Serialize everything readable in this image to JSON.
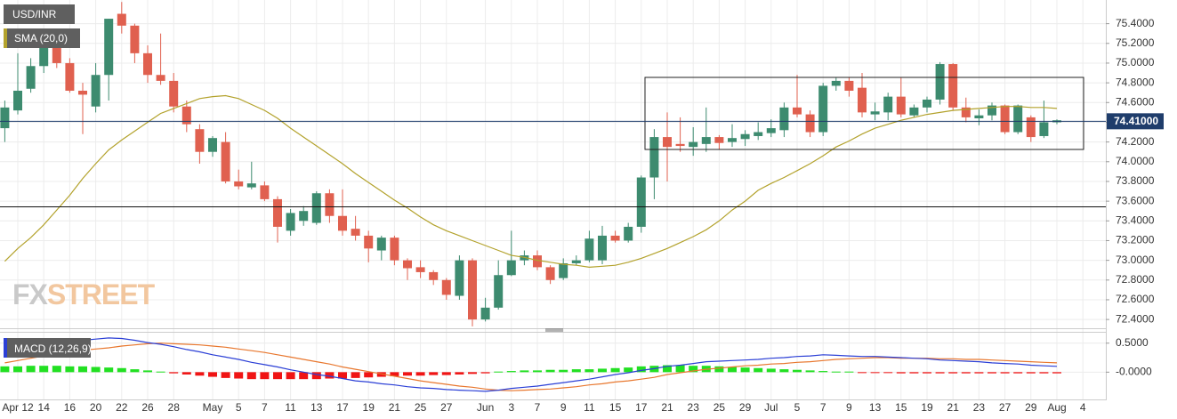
{
  "chart_data": [
    {
      "type": "candlestick",
      "series": [
        {
          "name": "USD/INR",
          "up_color": "#3d8b6f",
          "down_color": "#e0604f"
        }
      ],
      "categories": [
        null,
        "Apr 12",
        null,
        "14",
        null,
        "16",
        null,
        "20",
        null,
        "22",
        null,
        "26",
        null,
        "28",
        null,
        null,
        "May",
        null,
        "5",
        null,
        "7",
        null,
        "11",
        null,
        "13",
        null,
        "17",
        null,
        "19",
        null,
        "21",
        null,
        "25",
        null,
        "27",
        null,
        null,
        "Jun",
        null,
        "3",
        null,
        "7",
        null,
        "9",
        null,
        "11",
        null,
        "15",
        null,
        "17",
        null,
        "21",
        null,
        "23",
        null,
        "25",
        null,
        "29",
        null,
        "Jul",
        null,
        "5",
        null,
        "7",
        null,
        "9",
        null,
        "13",
        null,
        "15",
        null,
        "19",
        null,
        "21",
        null,
        "23",
        null,
        "27",
        null,
        "29",
        null,
        "Aug",
        null,
        "4"
      ],
      "open": [
        74.34,
        74.52,
        74.74,
        74.97,
        75.25,
        75.0,
        74.72,
        74.56,
        74.88,
        75.5,
        75.38,
        75.1,
        74.88,
        74.82,
        74.56,
        74.33,
        74.1,
        74.2,
        73.8,
        73.74,
        73.76,
        73.62,
        73.3,
        73.4,
        73.38,
        73.68,
        73.45,
        73.32,
        73.25,
        73.1,
        73.23,
        73.0,
        72.93,
        72.88,
        72.8,
        72.64,
        73.0,
        72.4,
        72.52,
        72.85,
        73.0,
        73.05,
        72.93,
        72.82,
        72.97,
        73.0,
        73.0,
        73.25,
        73.2,
        73.34,
        73.84,
        74.25,
        74.18,
        74.15,
        74.18,
        74.25,
        74.2,
        74.23,
        74.26,
        74.29,
        74.32,
        74.55,
        74.48,
        74.3,
        74.77,
        74.82,
        74.75,
        74.48,
        74.5,
        74.66,
        74.47,
        74.55,
        74.63,
        74.99,
        74.55,
        74.44,
        74.47,
        74.57,
        74.3,
        74.45,
        74.26,
        74.4,
        null,
        null
      ],
      "high": [
        74.62,
        75.1,
        75.05,
        75.35,
        75.32,
        75.05,
        74.8,
        75.0,
        75.45,
        75.62,
        75.4,
        75.18,
        75.3,
        74.9,
        74.62,
        74.38,
        74.26,
        74.3,
        73.92,
        74.0,
        73.8,
        73.65,
        73.52,
        73.55,
        73.7,
        73.72,
        73.72,
        73.45,
        73.3,
        73.25,
        73.25,
        73.02,
        73.0,
        72.9,
        72.82,
        73.05,
        73.02,
        72.62,
        73.0,
        73.3,
        73.1,
        73.1,
        72.95,
        73.02,
        73.05,
        73.3,
        73.35,
        73.3,
        73.38,
        73.86,
        74.33,
        74.5,
        74.45,
        74.35,
        74.55,
        74.27,
        74.38,
        74.32,
        74.4,
        74.43,
        74.6,
        74.88,
        74.52,
        74.8,
        74.85,
        74.86,
        74.9,
        74.6,
        74.7,
        74.85,
        74.58,
        74.66,
        75.01,
        75.0,
        74.65,
        74.53,
        74.6,
        74.58,
        74.58,
        74.47,
        74.62,
        74.43,
        null,
        null
      ],
      "low": [
        74.2,
        74.48,
        74.7,
        74.9,
        74.95,
        74.7,
        74.28,
        74.5,
        74.62,
        75.3,
        75.0,
        74.8,
        74.78,
        74.5,
        74.3,
        73.98,
        74.05,
        73.78,
        73.72,
        73.72,
        73.6,
        73.18,
        73.25,
        73.35,
        73.36,
        73.38,
        73.25,
        73.2,
        72.98,
        73.0,
        72.95,
        72.8,
        72.82,
        72.75,
        72.6,
        72.6,
        72.33,
        72.38,
        72.5,
        72.84,
        72.95,
        72.9,
        72.76,
        72.8,
        72.95,
        72.98,
        72.96,
        73.18,
        73.18,
        73.28,
        73.62,
        73.8,
        74.1,
        74.06,
        74.1,
        74.12,
        74.15,
        74.16,
        74.22,
        74.25,
        74.25,
        74.45,
        74.25,
        74.26,
        74.72,
        74.66,
        74.45,
        74.42,
        74.42,
        74.45,
        74.45,
        74.5,
        74.58,
        74.52,
        74.4,
        74.37,
        74.42,
        74.28,
        74.28,
        74.2,
        74.24,
        74.38,
        null,
        null
      ],
      "close": [
        74.55,
        74.72,
        74.97,
        75.24,
        75.0,
        74.72,
        74.68,
        74.88,
        75.45,
        75.38,
        75.1,
        74.88,
        74.82,
        74.56,
        74.38,
        74.1,
        74.24,
        73.8,
        73.75,
        73.78,
        73.62,
        73.34,
        73.48,
        73.5,
        73.68,
        73.45,
        73.3,
        73.25,
        73.12,
        73.23,
        73.0,
        72.92,
        72.88,
        72.8,
        72.65,
        73.0,
        72.4,
        72.52,
        72.85,
        73.0,
        73.05,
        72.93,
        72.8,
        72.97,
        73.0,
        73.22,
        73.25,
        73.2,
        73.34,
        73.84,
        74.25,
        74.15,
        74.16,
        74.2,
        74.25,
        74.19,
        74.24,
        74.28,
        74.3,
        74.34,
        74.55,
        74.48,
        74.3,
        74.77,
        74.82,
        74.72,
        74.5,
        74.51,
        74.66,
        74.48,
        74.55,
        74.63,
        74.99,
        74.55,
        74.45,
        74.47,
        74.57,
        74.3,
        74.57,
        74.25,
        74.4,
        74.42,
        null,
        null
      ],
      "sma": {
        "name": "SMA (20,0)",
        "color": "#b3a22c",
        "values": [
          72.99,
          73.12,
          73.23,
          73.36,
          73.51,
          73.66,
          73.83,
          73.98,
          74.12,
          74.22,
          74.31,
          74.4,
          74.49,
          74.54,
          74.59,
          74.64,
          74.66,
          74.67,
          74.64,
          74.58,
          74.52,
          74.44,
          74.34,
          74.25,
          74.16,
          74.07,
          73.98,
          73.88,
          73.79,
          73.7,
          73.61,
          73.53,
          73.44,
          73.36,
          73.3,
          73.25,
          73.2,
          73.15,
          73.1,
          73.05,
          73.03,
          73.0,
          72.98,
          72.96,
          72.95,
          72.93,
          72.94,
          72.95,
          72.98,
          73.02,
          73.07,
          73.12,
          73.18,
          73.24,
          73.31,
          73.4,
          73.51,
          73.6,
          73.71,
          73.78,
          73.84,
          73.91,
          73.98,
          74.06,
          74.15,
          74.21,
          74.28,
          74.34,
          74.38,
          74.42,
          74.45,
          74.48,
          74.5,
          74.52,
          74.53,
          74.54,
          74.55,
          74.56,
          74.56,
          74.55,
          74.55,
          74.54,
          null,
          null
        ]
      },
      "last_price": {
        "value": 74.41,
        "label": "74.41000"
      },
      "ylim": [
        72.32,
        75.64
      ],
      "yticks": [
        {
          "value": 72.4,
          "label": "72.4000"
        },
        {
          "value": 72.6,
          "label": "72.6000"
        },
        {
          "value": 72.8,
          "label": "72.8000"
        },
        {
          "value": 73.0,
          "label": "73.0000"
        },
        {
          "value": 73.2,
          "label": "73.2000"
        },
        {
          "value": 73.4,
          "label": "73.4000"
        },
        {
          "value": 73.6,
          "label": "73.6000"
        },
        {
          "value": 73.8,
          "label": "73.8000"
        },
        {
          "value": 74.0,
          "label": "74.0000"
        },
        {
          "value": 74.2,
          "label": "74.2000"
        },
        {
          "value": 74.4,
          "label": "74.4000"
        },
        {
          "value": 74.6,
          "label": "74.6000"
        },
        {
          "value": 74.8,
          "label": "74.8000"
        },
        {
          "value": 75.0,
          "label": "75.0000"
        },
        {
          "value": 75.2,
          "label": "75.2000"
        },
        {
          "value": 75.4,
          "label": "75.4000"
        }
      ],
      "grid": true,
      "watermark": [
        "FX",
        "STREET"
      ]
    },
    {
      "type": "macd",
      "name": "MACD (12,26,9)",
      "macd": {
        "color": "#2b3fd6",
        "values": [
          0.33,
          0.38,
          0.43,
          0.47,
          0.51,
          0.53,
          0.55,
          0.57,
          0.59,
          0.58,
          0.55,
          0.51,
          0.48,
          0.44,
          0.39,
          0.35,
          0.3,
          0.26,
          0.22,
          0.17,
          0.13,
          0.09,
          0.04,
          0.0,
          -0.04,
          -0.07,
          -0.11,
          -0.15,
          -0.17,
          -0.2,
          -0.22,
          -0.25,
          -0.27,
          -0.28,
          -0.3,
          -0.31,
          -0.32,
          -0.33,
          -0.31,
          -0.28,
          -0.26,
          -0.24,
          -0.21,
          -0.18,
          -0.15,
          -0.12,
          -0.08,
          -0.04,
          -0.01,
          0.03,
          0.06,
          0.1,
          0.12,
          0.15,
          0.18,
          0.19,
          0.2,
          0.21,
          0.22,
          0.24,
          0.25,
          0.27,
          0.28,
          0.3,
          0.29,
          0.28,
          0.27,
          0.27,
          0.26,
          0.25,
          0.24,
          0.23,
          0.21,
          0.2,
          0.19,
          0.18,
          0.16,
          0.15,
          0.14,
          0.12,
          0.11,
          0.1,
          null,
          null
        ]
      },
      "signal": {
        "color": "#e8772e",
        "values": [
          0.16,
          0.2,
          0.24,
          0.28,
          0.31,
          0.34,
          0.38,
          0.4,
          0.42,
          0.45,
          0.47,
          0.49,
          0.5,
          0.49,
          0.48,
          0.47,
          0.45,
          0.43,
          0.4,
          0.37,
          0.34,
          0.3,
          0.26,
          0.22,
          0.18,
          0.14,
          0.09,
          0.05,
          0.01,
          -0.03,
          -0.07,
          -0.11,
          -0.15,
          -0.18,
          -0.21,
          -0.24,
          -0.26,
          -0.29,
          -0.31,
          -0.32,
          -0.31,
          -0.3,
          -0.29,
          -0.27,
          -0.25,
          -0.22,
          -0.2,
          -0.17,
          -0.15,
          -0.12,
          -0.09,
          -0.04,
          -0.01,
          0.02,
          0.05,
          0.07,
          0.09,
          0.11,
          0.12,
          0.14,
          0.15,
          0.17,
          0.18,
          0.2,
          0.22,
          0.23,
          0.24,
          0.25,
          0.25,
          0.24,
          0.24,
          0.24,
          0.23,
          0.23,
          0.22,
          0.22,
          0.21,
          0.2,
          0.19,
          0.18,
          0.17,
          0.16,
          null,
          null
        ]
      },
      "histogram": {
        "up_color": "#22e022",
        "down_color": "#f01414",
        "values": [
          0.1,
          0.1,
          0.11,
          0.11,
          0.11,
          0.1,
          0.1,
          0.09,
          0.08,
          0.07,
          0.05,
          0.03,
          0.01,
          -0.02,
          -0.04,
          -0.06,
          -0.08,
          -0.1,
          -0.11,
          -0.12,
          -0.12,
          -0.12,
          -0.12,
          -0.12,
          -0.12,
          -0.11,
          -0.11,
          -0.1,
          -0.09,
          -0.08,
          -0.07,
          -0.06,
          -0.06,
          -0.05,
          -0.05,
          -0.04,
          -0.03,
          -0.02,
          0.01,
          0.02,
          0.03,
          0.03,
          0.04,
          0.04,
          0.05,
          0.05,
          0.06,
          0.07,
          0.08,
          0.1,
          0.11,
          0.12,
          0.12,
          0.11,
          0.11,
          0.1,
          0.09,
          0.08,
          0.07,
          0.06,
          0.05,
          0.04,
          0.03,
          0.02,
          0.01,
          0.01,
          -0.01,
          -0.01,
          -0.01,
          -0.02,
          -0.02,
          -0.02,
          -0.02,
          -0.02,
          -0.02,
          -0.02,
          -0.02,
          -0.02,
          -0.02,
          -0.02,
          -0.02,
          -0.02,
          null,
          null
        ]
      },
      "ylim": [
        -0.47,
        0.68
      ],
      "yticks": [
        {
          "value": 0.5,
          "label": "0.5000"
        },
        {
          "value": 0,
          "label": "-0.0000"
        }
      ]
    }
  ]
}
